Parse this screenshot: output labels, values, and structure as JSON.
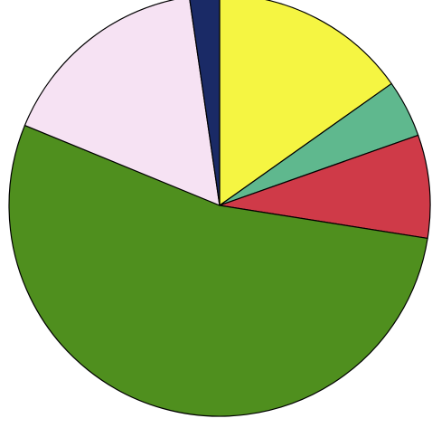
{
  "chart_data": {
    "type": "pie",
    "title": "",
    "legend": "none",
    "slices": [
      {
        "value": 15.2,
        "color": "#f5f542"
      },
      {
        "value": 4.4,
        "color": "#5fb88e"
      },
      {
        "value": 7.9,
        "color": "#cf3a48"
      },
      {
        "value": 53.7,
        "color": "#4f8f1e"
      },
      {
        "value": 16.5,
        "color": "#f6e2f3"
      },
      {
        "value": 2.3,
        "color": "#1a2a66"
      }
    ],
    "start_angle_deg": 0,
    "direction": "clockwise",
    "stroke_color": "#000000"
  }
}
